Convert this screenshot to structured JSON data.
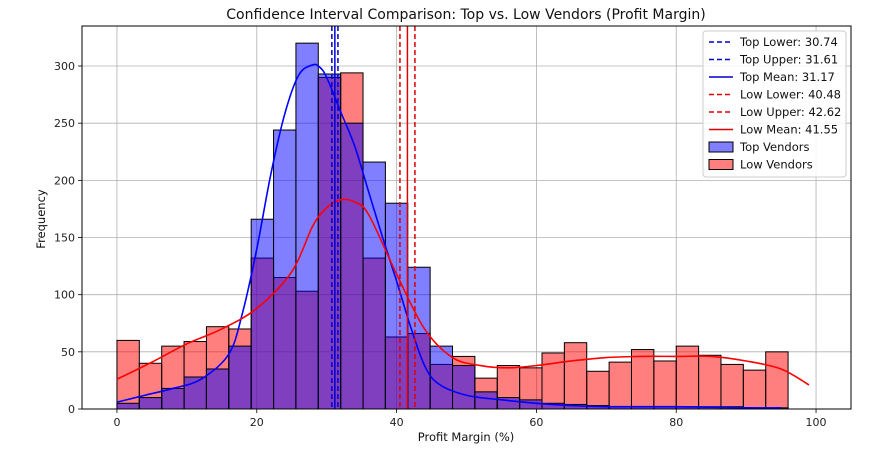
{
  "chart_data": {
    "type": "bar",
    "title": "Confidence Interval Comparison: Top vs. Low Vendors (Profit Margin)",
    "xlabel": "Profit Margin (%)",
    "ylabel": "Frequency",
    "xlim": [
      -5,
      105
    ],
    "ylim": [
      0,
      335
    ],
    "xticks": [
      0,
      20,
      40,
      60,
      80,
      100
    ],
    "yticks": [
      0,
      50,
      100,
      150,
      200,
      250,
      300
    ],
    "grid": true,
    "legend_position": "top-right",
    "series": [
      {
        "name": "Top Vendors",
        "color": "#0000ff",
        "bin_width": 3.2,
        "bin_starts": [
          0,
          3.2,
          6.4,
          9.6,
          12.8,
          16.0,
          19.2,
          22.4,
          25.6,
          28.8,
          32.0,
          35.2,
          38.4,
          41.6,
          44.8,
          48.0,
          51.2,
          54.4,
          57.6,
          60.8,
          64.0,
          67.2,
          70.4,
          73.6,
          76.8,
          80.0,
          83.2,
          86.4,
          89.6,
          92.8
        ],
        "values": [
          5,
          10,
          18,
          28,
          35,
          55,
          166,
          244,
          320,
          293,
          250,
          216,
          180,
          124,
          55,
          38,
          15,
          10,
          8,
          5,
          4,
          3,
          2,
          2,
          2,
          2,
          2,
          2,
          1,
          1
        ]
      },
      {
        "name": "Low Vendors",
        "color": "#ff0000",
        "bin_width": 3.2,
        "bin_starts": [
          0,
          3.2,
          6.4,
          9.6,
          12.8,
          16.0,
          19.2,
          22.4,
          25.6,
          28.8,
          32.0,
          35.2,
          38.4,
          41.6,
          44.8,
          48.0,
          51.2,
          54.4,
          57.6,
          60.8,
          64.0,
          67.2,
          70.4,
          73.6,
          76.8,
          80.0,
          83.2,
          86.4,
          89.6,
          92.8,
          96.0
        ],
        "values": [
          60,
          40,
          55,
          59,
          72,
          70,
          132,
          115,
          103,
          290,
          294,
          132,
          63,
          66,
          39,
          46,
          27,
          38,
          36,
          49,
          58,
          33,
          41,
          52,
          42,
          55,
          47,
          39,
          34,
          50,
          0
        ]
      }
    ],
    "kde_series": [
      {
        "name": "Top Mean: 31.17",
        "color": "#0000ff",
        "x": [
          0,
          4,
          8,
          12,
          16,
          18,
          20,
          22,
          24,
          26,
          28,
          29,
          30,
          32,
          34,
          36,
          38,
          40,
          42,
          44,
          46,
          50,
          55,
          60,
          65,
          70,
          80,
          90,
          95
        ],
        "y": [
          6,
          12,
          18,
          26,
          48,
          85,
          140,
          205,
          258,
          292,
          301,
          299,
          290,
          260,
          230,
          190,
          150,
          112,
          72,
          38,
          22,
          12,
          8,
          5,
          3,
          2,
          2,
          1,
          1
        ]
      },
      {
        "name": "Low Mean: 41.55",
        "color": "#ff0000",
        "x": [
          0,
          5,
          10,
          15,
          20,
          25,
          28,
          30,
          32,
          34,
          36,
          40,
          44,
          48,
          52,
          56,
          60,
          65,
          70,
          75,
          80,
          85,
          90,
          95,
          99
        ],
        "y": [
          26,
          41,
          57,
          70,
          88,
          120,
          160,
          176,
          183,
          181,
          170,
          118,
          70,
          45,
          38,
          36,
          38,
          42,
          45,
          46,
          46,
          46,
          42,
          35,
          21
        ]
      }
    ],
    "ci_lines": [
      {
        "label": "Top Lower: 30.74",
        "x": 30.74,
        "color": "#0000cc",
        "dash": true
      },
      {
        "label": "Top Upper: 31.61",
        "x": 31.61,
        "color": "#0000cc",
        "dash": true
      },
      {
        "label": "Top Mean: 31.17",
        "x": 31.17,
        "color": "#0000cc",
        "dash": false
      },
      {
        "label": "Low Lower: 40.48",
        "x": 40.48,
        "color": "#dd0000",
        "dash": true
      },
      {
        "label": "Low Upper: 42.62",
        "x": 42.62,
        "color": "#dd0000",
        "dash": true
      },
      {
        "label": "Low Mean: 41.55",
        "x": 41.55,
        "color": "#dd0000",
        "dash": false
      }
    ],
    "legend": [
      {
        "label": "Top Lower: 30.74",
        "kind": "dashed",
        "color": "#0000cc"
      },
      {
        "label": "Top Upper: 31.61",
        "kind": "dashed",
        "color": "#0000cc"
      },
      {
        "label": "Top Mean: 31.17",
        "kind": "solid",
        "color": "#0000cc"
      },
      {
        "label": "Low Lower: 40.48",
        "kind": "dashed",
        "color": "#dd0000"
      },
      {
        "label": "Low Upper: 42.62",
        "kind": "dashed",
        "color": "#dd0000"
      },
      {
        "label": "Low Mean: 41.55",
        "kind": "solid",
        "color": "#dd0000"
      },
      {
        "label": "Top Vendors",
        "kind": "patch",
        "color": "#0000ff"
      },
      {
        "label": "Low Vendors",
        "kind": "patch",
        "color": "#ff0000"
      }
    ]
  }
}
